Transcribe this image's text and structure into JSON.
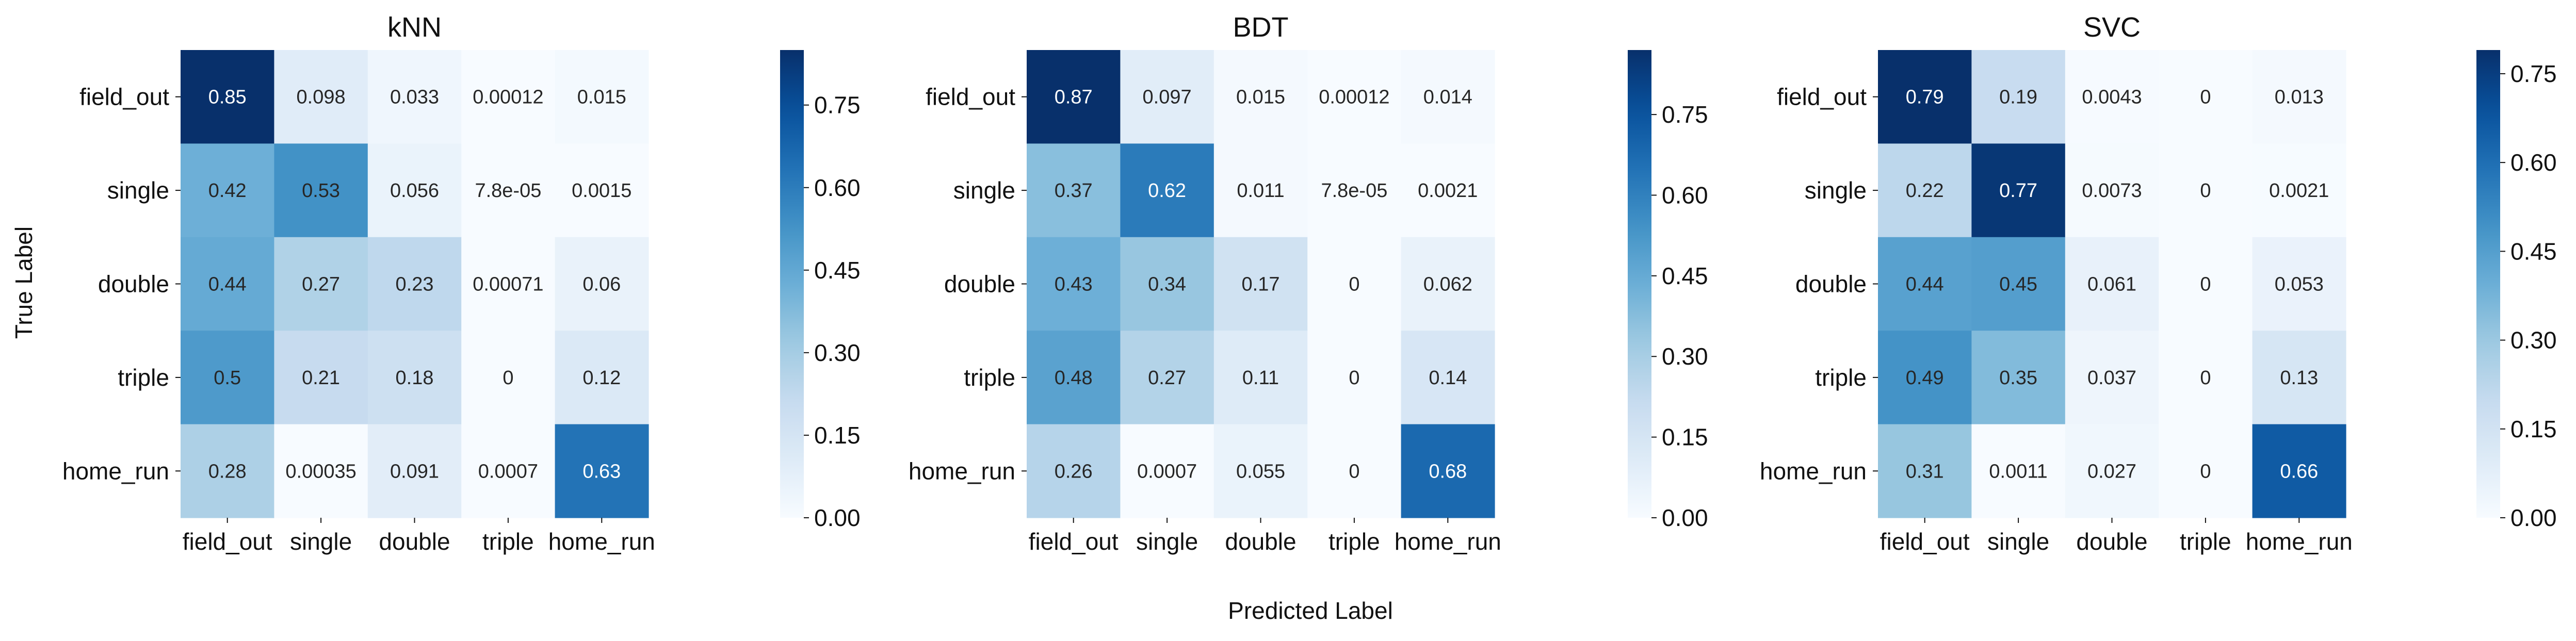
{
  "figure": {
    "xlabel": "Predicted Label",
    "ylabel": "True Label"
  },
  "chart_data": [
    {
      "type": "heatmap",
      "title": "kNN",
      "x_categories": [
        "field_out",
        "single",
        "double",
        "triple",
        "home_run"
      ],
      "y_categories": [
        "field_out",
        "single",
        "double",
        "triple",
        "home_run"
      ],
      "values": [
        [
          0.85,
          0.098,
          0.033,
          0.00012,
          0.015
        ],
        [
          0.42,
          0.53,
          0.056,
          7.8e-05,
          0.0015
        ],
        [
          0.44,
          0.27,
          0.23,
          0.00071,
          0.06
        ],
        [
          0.5,
          0.21,
          0.18,
          0,
          0.12
        ],
        [
          0.28,
          0.00035,
          0.091,
          0.0007,
          0.63
        ]
      ],
      "cell_labels": [
        [
          "0.85",
          "0.098",
          "0.033",
          "0.00012",
          "0.015"
        ],
        [
          "0.42",
          "0.53",
          "0.056",
          "7.8e-05",
          "0.0015"
        ],
        [
          "0.44",
          "0.27",
          "0.23",
          "0.00071",
          "0.06"
        ],
        [
          "0.5",
          "0.21",
          "0.18",
          "0",
          "0.12"
        ],
        [
          "0.28",
          "0.00035",
          "0.091",
          "0.0007",
          "0.63"
        ]
      ],
      "colorbar": {
        "min": 0,
        "max": 0.85,
        "ticks": [
          "0.00",
          "0.15",
          "0.30",
          "0.45",
          "0.60",
          "0.75"
        ]
      },
      "colormap": "Blues"
    },
    {
      "type": "heatmap",
      "title": "BDT",
      "x_categories": [
        "field_out",
        "single",
        "double",
        "triple",
        "home_run"
      ],
      "y_categories": [
        "field_out",
        "single",
        "double",
        "triple",
        "home_run"
      ],
      "values": [
        [
          0.87,
          0.097,
          0.015,
          0.00012,
          0.014
        ],
        [
          0.37,
          0.62,
          0.011,
          7.8e-05,
          0.0021
        ],
        [
          0.43,
          0.34,
          0.17,
          0,
          0.062
        ],
        [
          0.48,
          0.27,
          0.11,
          0,
          0.14
        ],
        [
          0.26,
          0.0007,
          0.055,
          0,
          0.68
        ]
      ],
      "cell_labels": [
        [
          "0.87",
          "0.097",
          "0.015",
          "0.00012",
          "0.014"
        ],
        [
          "0.37",
          "0.62",
          "0.011",
          "7.8e-05",
          "0.0021"
        ],
        [
          "0.43",
          "0.34",
          "0.17",
          "0",
          "0.062"
        ],
        [
          "0.48",
          "0.27",
          "0.11",
          "0",
          "0.14"
        ],
        [
          "0.26",
          "0.0007",
          "0.055",
          "0",
          "0.68"
        ]
      ],
      "colorbar": {
        "min": 0,
        "max": 0.87,
        "ticks": [
          "0.00",
          "0.15",
          "0.30",
          "0.45",
          "0.60",
          "0.75"
        ]
      },
      "colormap": "Blues"
    },
    {
      "type": "heatmap",
      "title": "SVC",
      "x_categories": [
        "field_out",
        "single",
        "double",
        "triple",
        "home_run"
      ],
      "y_categories": [
        "field_out",
        "single",
        "double",
        "triple",
        "home_run"
      ],
      "values": [
        [
          0.79,
          0.19,
          0.0043,
          0,
          0.013
        ],
        [
          0.22,
          0.77,
          0.0073,
          0,
          0.0021
        ],
        [
          0.44,
          0.45,
          0.061,
          0,
          0.053
        ],
        [
          0.49,
          0.35,
          0.037,
          0,
          0.13
        ],
        [
          0.31,
          0.0011,
          0.027,
          0,
          0.66
        ]
      ],
      "cell_labels": [
        [
          "0.79",
          "0.19",
          "0.0043",
          "0",
          "0.013"
        ],
        [
          "0.22",
          "0.77",
          "0.0073",
          "0",
          "0.0021"
        ],
        [
          "0.44",
          "0.45",
          "0.061",
          "0",
          "0.053"
        ],
        [
          "0.49",
          "0.35",
          "0.037",
          "0",
          "0.13"
        ],
        [
          "0.31",
          "0.0011",
          "0.027",
          "0",
          "0.66"
        ]
      ],
      "colorbar": {
        "min": 0,
        "max": 0.79,
        "ticks": [
          "0.00",
          "0.15",
          "0.30",
          "0.45",
          "0.60",
          "0.75"
        ]
      },
      "colormap": "Blues"
    }
  ]
}
